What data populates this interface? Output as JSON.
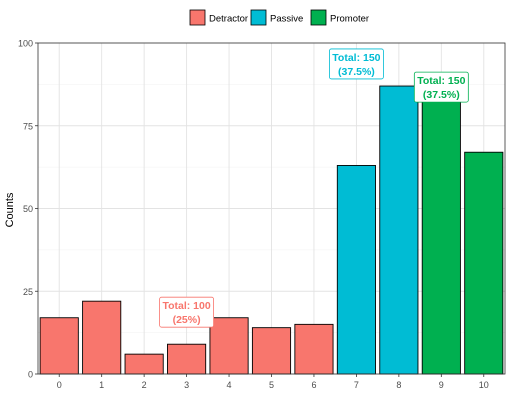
{
  "chart_data": {
    "type": "bar",
    "title": "",
    "xlabel": "",
    "ylabel": "Counts",
    "ylim": [
      0,
      100
    ],
    "yticks": [
      0,
      25,
      50,
      75,
      100
    ],
    "grid": true,
    "legend_position": "top",
    "categories": [
      "0",
      "1",
      "2",
      "3",
      "4",
      "5",
      "6",
      "7",
      "8",
      "9",
      "10"
    ],
    "values": [
      17,
      22,
      6,
      9,
      17,
      14,
      15,
      63,
      87,
      83,
      67
    ],
    "groups": [
      "Detractor",
      "Detractor",
      "Detractor",
      "Detractor",
      "Detractor",
      "Detractor",
      "Detractor",
      "Passive",
      "Passive",
      "Promoter",
      "Promoter"
    ],
    "series": [
      {
        "name": "Detractor",
        "color": "#F8766D"
      },
      {
        "name": "Passive",
        "color": "#00BCD4"
      },
      {
        "name": "Promoter",
        "color": "#00B050"
      }
    ],
    "annotations": [
      {
        "line1": "Total: 100",
        "line2": "(25%)",
        "anchor_category": "3",
        "y": 22,
        "color": "#F8766D"
      },
      {
        "line1": "Total: 150",
        "line2": "(37.5%)",
        "anchor_category": "7",
        "y": 97,
        "color": "#00BCD4"
      },
      {
        "line1": "Total: 150",
        "line2": "(37.5%)",
        "anchor_category": "9",
        "y": 90,
        "color": "#00B050"
      }
    ]
  }
}
